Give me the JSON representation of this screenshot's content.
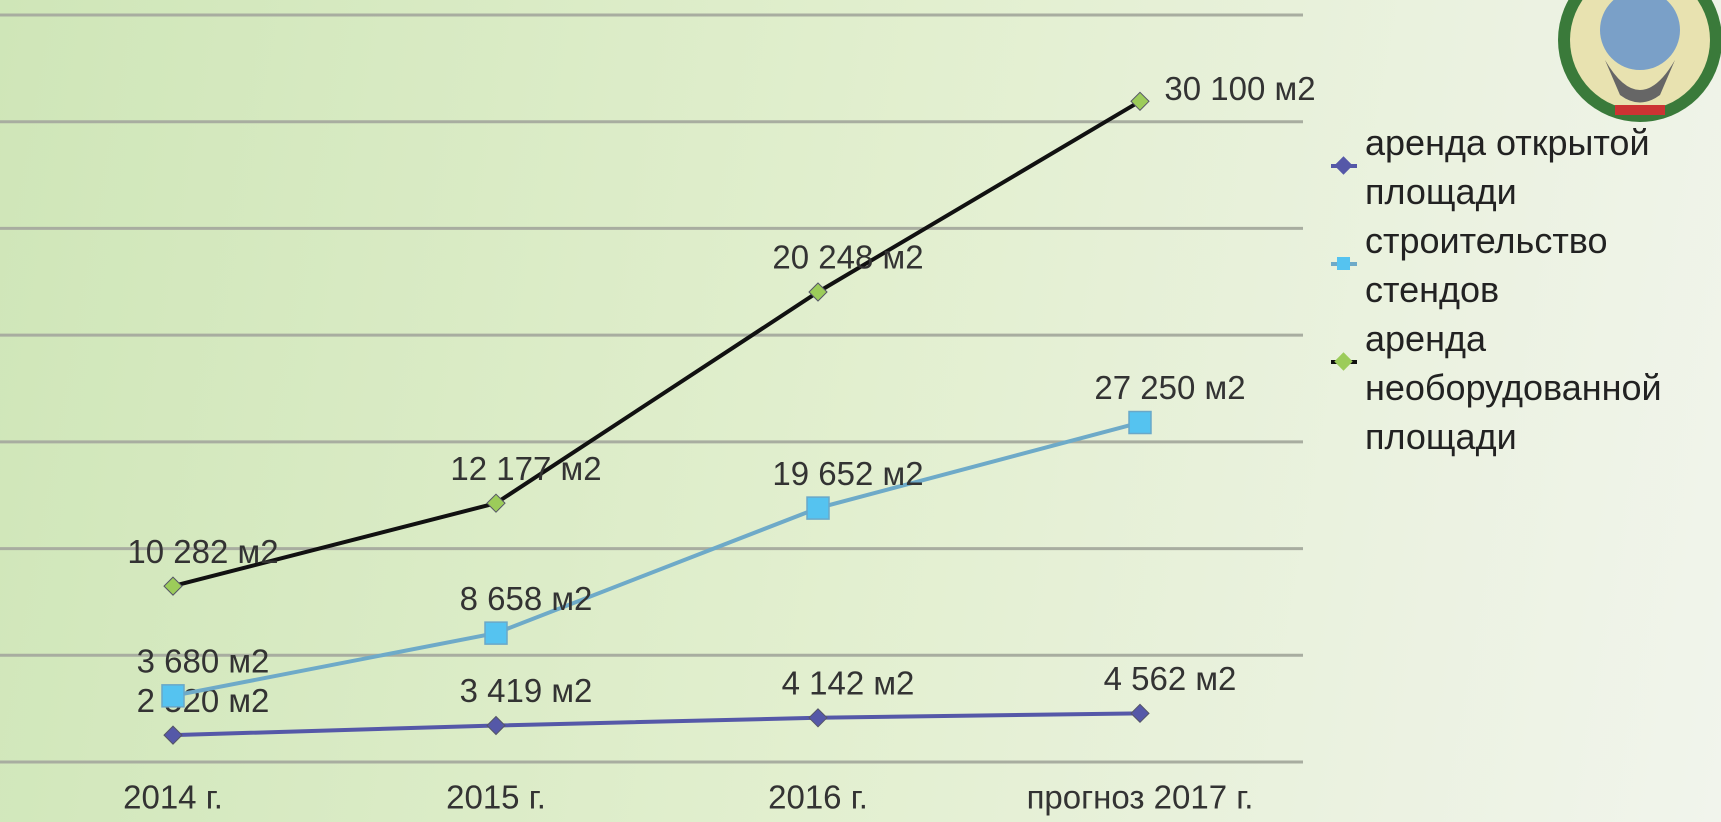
{
  "chart_data": {
    "type": "line",
    "stacked": true,
    "categories": [
      "2014 г.",
      "2015 г.",
      "2016 г.",
      "прогноз 2017 г."
    ],
    "series": [
      {
        "name": "аренда открытой площади",
        "color": "#5558a8",
        "marker": "diamond",
        "marker_color": "#5558a8",
        "values": [
          2520,
          3419,
          4142,
          4562
        ],
        "value_labels": [
          "2 520 м2",
          "3 419 м2",
          "4 142 м2",
          "4 562 м2"
        ]
      },
      {
        "name": "строительство стендов",
        "color": "#6eaac8",
        "marker": "square",
        "marker_color": "#55c3f0",
        "values": [
          3680,
          8658,
          19652,
          27250
        ],
        "value_labels": [
          "3 680 м2",
          "8 658 м2",
          "19 652 м2",
          "27 250 м2"
        ]
      },
      {
        "name": "аренда необорудованной площади",
        "color": "#111111",
        "marker": "diamond",
        "marker_color": "#9ccc5a",
        "values": [
          10282,
          12177,
          20248,
          30100
        ],
        "value_labels": [
          "10 282 м2",
          "12 177 м2",
          "20 248 м2",
          "30 100 м2"
        ]
      }
    ],
    "ylim": [
      0,
      70000
    ],
    "yticks": [
      0,
      10000,
      20000,
      30000,
      40000,
      50000,
      60000,
      70000
    ],
    "grid": true,
    "legend": "right"
  }
}
